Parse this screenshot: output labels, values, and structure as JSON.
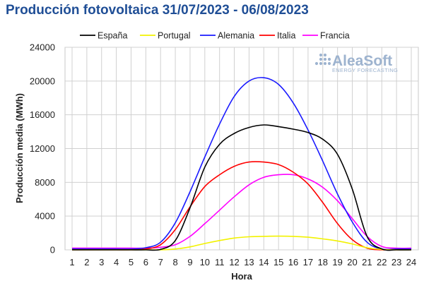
{
  "chart_data": {
    "type": "line",
    "title": "Producción fotovoltaica 31/07/2023 - 06/08/2023",
    "xlabel": "Hora",
    "ylabel": "Producción media (MWh)",
    "ylim": [
      0,
      24000
    ],
    "xlim": [
      1,
      24
    ],
    "yticks": [
      "0",
      "4000",
      "8000",
      "12000",
      "16000",
      "20000",
      "24000"
    ],
    "x": [
      1,
      2,
      3,
      4,
      5,
      6,
      7,
      8,
      9,
      10,
      11,
      12,
      13,
      14,
      15,
      16,
      17,
      18,
      19,
      20,
      21,
      22,
      23,
      24
    ],
    "grid": true,
    "legend_position": "top",
    "series": [
      {
        "name": "España",
        "color": "#000000",
        "values": [
          0,
          0,
          0,
          0,
          0,
          0,
          50,
          1100,
          5000,
          9800,
          12500,
          13800,
          14500,
          14800,
          14600,
          14300,
          13900,
          13100,
          11300,
          7200,
          1600,
          100,
          0,
          0
        ]
      },
      {
        "name": "Portugal",
        "color": "#f2f200",
        "values": [
          0,
          0,
          0,
          0,
          0,
          0,
          0,
          100,
          350,
          750,
          1100,
          1400,
          1550,
          1600,
          1620,
          1600,
          1500,
          1300,
          1050,
          700,
          250,
          50,
          0,
          0
        ]
      },
      {
        "name": "Alemania",
        "color": "#1a1aff",
        "values": [
          100,
          100,
          100,
          100,
          100,
          250,
          900,
          3200,
          6900,
          11000,
          14900,
          18200,
          20000,
          20400,
          19600,
          17400,
          14200,
          10500,
          6600,
          3300,
          900,
          100,
          100,
          100
        ]
      },
      {
        "name": "Italia",
        "color": "#ff0000",
        "values": [
          0,
          0,
          0,
          0,
          0,
          100,
          600,
          2400,
          5100,
          7500,
          8900,
          9900,
          10400,
          10400,
          10100,
          9200,
          7800,
          5600,
          3100,
          1200,
          200,
          0,
          0,
          0
        ]
      },
      {
        "name": "Francia",
        "color": "#ff00ff",
        "values": [
          200,
          200,
          200,
          200,
          200,
          200,
          300,
          600,
          1600,
          3100,
          4700,
          6300,
          7700,
          8600,
          8900,
          8900,
          8400,
          7400,
          5800,
          3700,
          1600,
          400,
          200,
          200
        ]
      }
    ]
  },
  "watermark": {
    "brand": "AleaSoft",
    "tagline": "ENERGY FORECASTING"
  }
}
